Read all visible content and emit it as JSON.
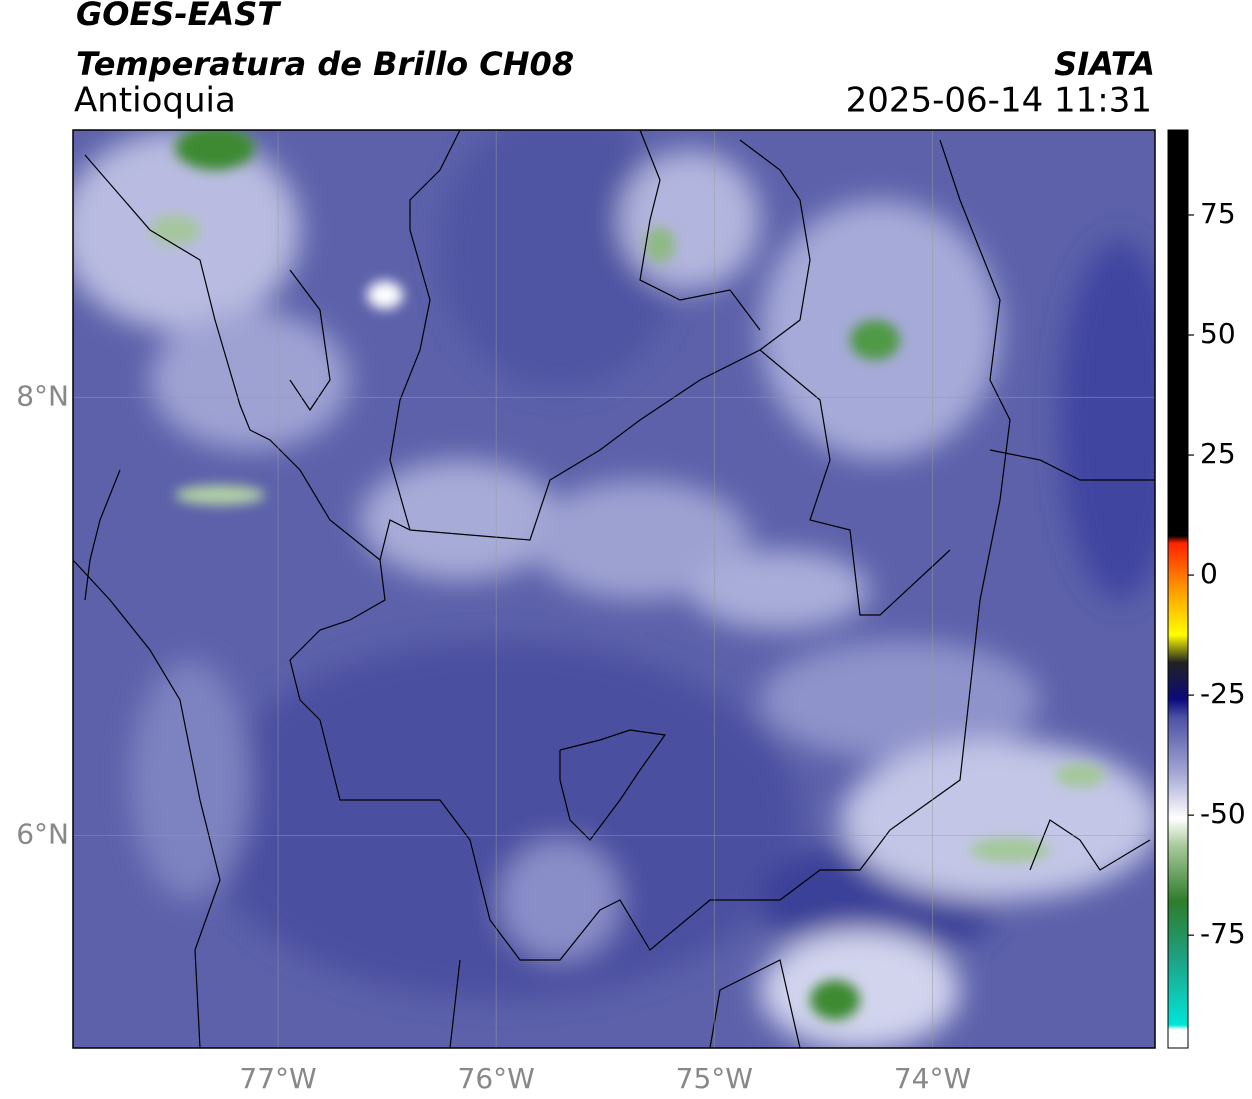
{
  "header": {
    "title": "GOES-EAST",
    "subtitle": "Temperatura de Brillo CH08",
    "region": "Antioquia",
    "source": "SIATA",
    "timestamp": "2025-06-14 11:31"
  },
  "map": {
    "xlim": [
      -77.94,
      -72.98
    ],
    "ylim": [
      5.03,
      9.22
    ],
    "xticks": [
      {
        "value": -77,
        "label": "77°W"
      },
      {
        "value": -76,
        "label": "76°W"
      },
      {
        "value": -75,
        "label": "75°W"
      },
      {
        "value": -74,
        "label": "74°W"
      }
    ],
    "yticks": [
      {
        "value": 8,
        "label": "8°N"
      },
      {
        "value": 6,
        "label": "6°N"
      }
    ],
    "grid": true
  },
  "colorbar": {
    "range": [
      -98.5,
      92.7
    ],
    "ticks": [
      75,
      50,
      25,
      0,
      -25,
      -50,
      -75
    ]
  }
}
